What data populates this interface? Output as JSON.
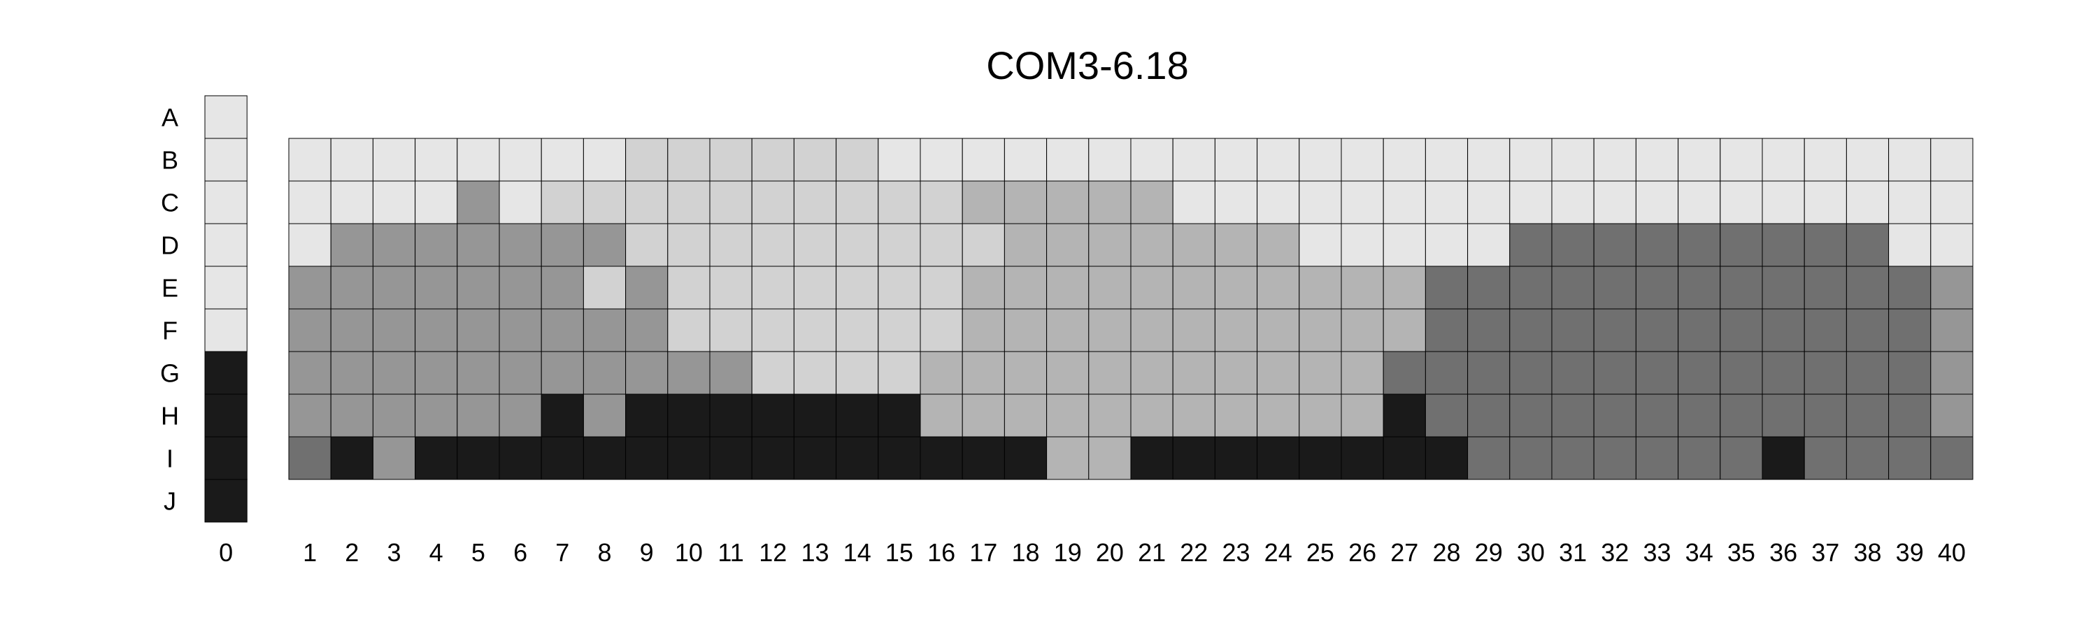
{
  "chart_data": {
    "type": "heatmap",
    "title": "COM3-6.18",
    "row_labels": [
      "A",
      "B",
      "C",
      "D",
      "E",
      "F",
      "G",
      "H",
      "I",
      "J"
    ],
    "column_labels": [
      "0",
      "1",
      "2",
      "3",
      "4",
      "5",
      "6",
      "7",
      "8",
      "9",
      "10",
      "11",
      "12",
      "13",
      "14",
      "15",
      "16",
      "17",
      "18",
      "19",
      "20",
      "21",
      "22",
      "23",
      "24",
      "25",
      "26",
      "27",
      "28",
      "29",
      "30",
      "31",
      "32",
      "33",
      "34",
      "35",
      "36",
      "37",
      "38",
      "39",
      "40"
    ],
    "palette": [
      "#e6e6e6",
      "#d2d2d2",
      "#b4b4b4",
      "#969696",
      "#707070",
      "#1a1a1a"
    ],
    "key_column": {
      "column": "0",
      "rows": [
        "A",
        "B",
        "C",
        "D",
        "E",
        "F",
        "G",
        "H",
        "I",
        "J"
      ],
      "levels": [
        0,
        0,
        0,
        0,
        0,
        0,
        5,
        5,
        5,
        5
      ]
    },
    "grid": {
      "rows": [
        "B",
        "C",
        "D",
        "E",
        "F",
        "G",
        "H",
        "I"
      ],
      "columns": [
        "1",
        "2",
        "3",
        "4",
        "5",
        "6",
        "7",
        "8",
        "9",
        "10",
        "11",
        "12",
        "13",
        "14",
        "15",
        "16",
        "17",
        "18",
        "19",
        "20",
        "21",
        "22",
        "23",
        "24",
        "25",
        "26",
        "27",
        "28",
        "29",
        "30",
        "31",
        "32",
        "33",
        "34",
        "35",
        "36",
        "37",
        "38",
        "39",
        "40"
      ],
      "levels": [
        [
          0,
          0,
          0,
          0,
          0,
          0,
          0,
          0,
          1,
          1,
          1,
          1,
          1,
          1,
          0,
          0,
          0,
          0,
          0,
          0,
          0,
          0,
          0,
          0,
          0,
          0,
          0,
          0,
          0,
          0,
          0,
          0,
          0,
          0,
          0,
          0,
          0,
          0,
          0,
          0
        ],
        [
          0,
          0,
          0,
          0,
          3,
          0,
          1,
          1,
          1,
          1,
          1,
          1,
          1,
          1,
          1,
          1,
          2,
          2,
          2,
          2,
          2,
          0,
          0,
          0,
          0,
          0,
          0,
          0,
          0,
          0,
          0,
          0,
          0,
          0,
          0,
          0,
          0,
          0,
          0,
          0
        ],
        [
          0,
          3,
          3,
          3,
          3,
          3,
          3,
          3,
          1,
          1,
          1,
          1,
          1,
          1,
          1,
          1,
          1,
          2,
          2,
          2,
          2,
          2,
          2,
          2,
          0,
          0,
          0,
          0,
          0,
          4,
          4,
          4,
          4,
          4,
          4,
          4,
          4,
          4,
          0,
          0
        ],
        [
          3,
          3,
          3,
          3,
          3,
          3,
          3,
          1,
          3,
          1,
          1,
          1,
          1,
          1,
          1,
          1,
          2,
          2,
          2,
          2,
          2,
          2,
          2,
          2,
          2,
          2,
          2,
          4,
          4,
          4,
          4,
          4,
          4,
          4,
          4,
          4,
          4,
          4,
          4,
          3
        ],
        [
          3,
          3,
          3,
          3,
          3,
          3,
          3,
          3,
          3,
          1,
          1,
          1,
          1,
          1,
          1,
          1,
          2,
          2,
          2,
          2,
          2,
          2,
          2,
          2,
          2,
          2,
          2,
          4,
          4,
          4,
          4,
          4,
          4,
          4,
          4,
          4,
          4,
          4,
          4,
          3
        ],
        [
          3,
          3,
          3,
          3,
          3,
          3,
          3,
          3,
          3,
          3,
          3,
          1,
          1,
          1,
          1,
          2,
          2,
          2,
          2,
          2,
          2,
          2,
          2,
          2,
          2,
          2,
          4,
          4,
          4,
          4,
          4,
          4,
          4,
          4,
          4,
          4,
          4,
          4,
          4,
          3
        ],
        [
          3,
          3,
          3,
          3,
          3,
          3,
          5,
          3,
          5,
          5,
          5,
          5,
          5,
          5,
          5,
          2,
          2,
          2,
          2,
          2,
          2,
          2,
          2,
          2,
          2,
          2,
          5,
          4,
          4,
          4,
          4,
          4,
          4,
          4,
          4,
          4,
          4,
          4,
          4,
          3
        ],
        [
          4,
          5,
          3,
          5,
          5,
          5,
          5,
          5,
          5,
          5,
          5,
          5,
          5,
          5,
          5,
          5,
          5,
          5,
          2,
          2,
          5,
          5,
          5,
          5,
          5,
          5,
          5,
          5,
          4,
          4,
          4,
          4,
          4,
          4,
          4,
          5,
          4,
          4,
          4,
          4
        ]
      ]
    },
    "legend": "none",
    "grid_lines": true
  }
}
